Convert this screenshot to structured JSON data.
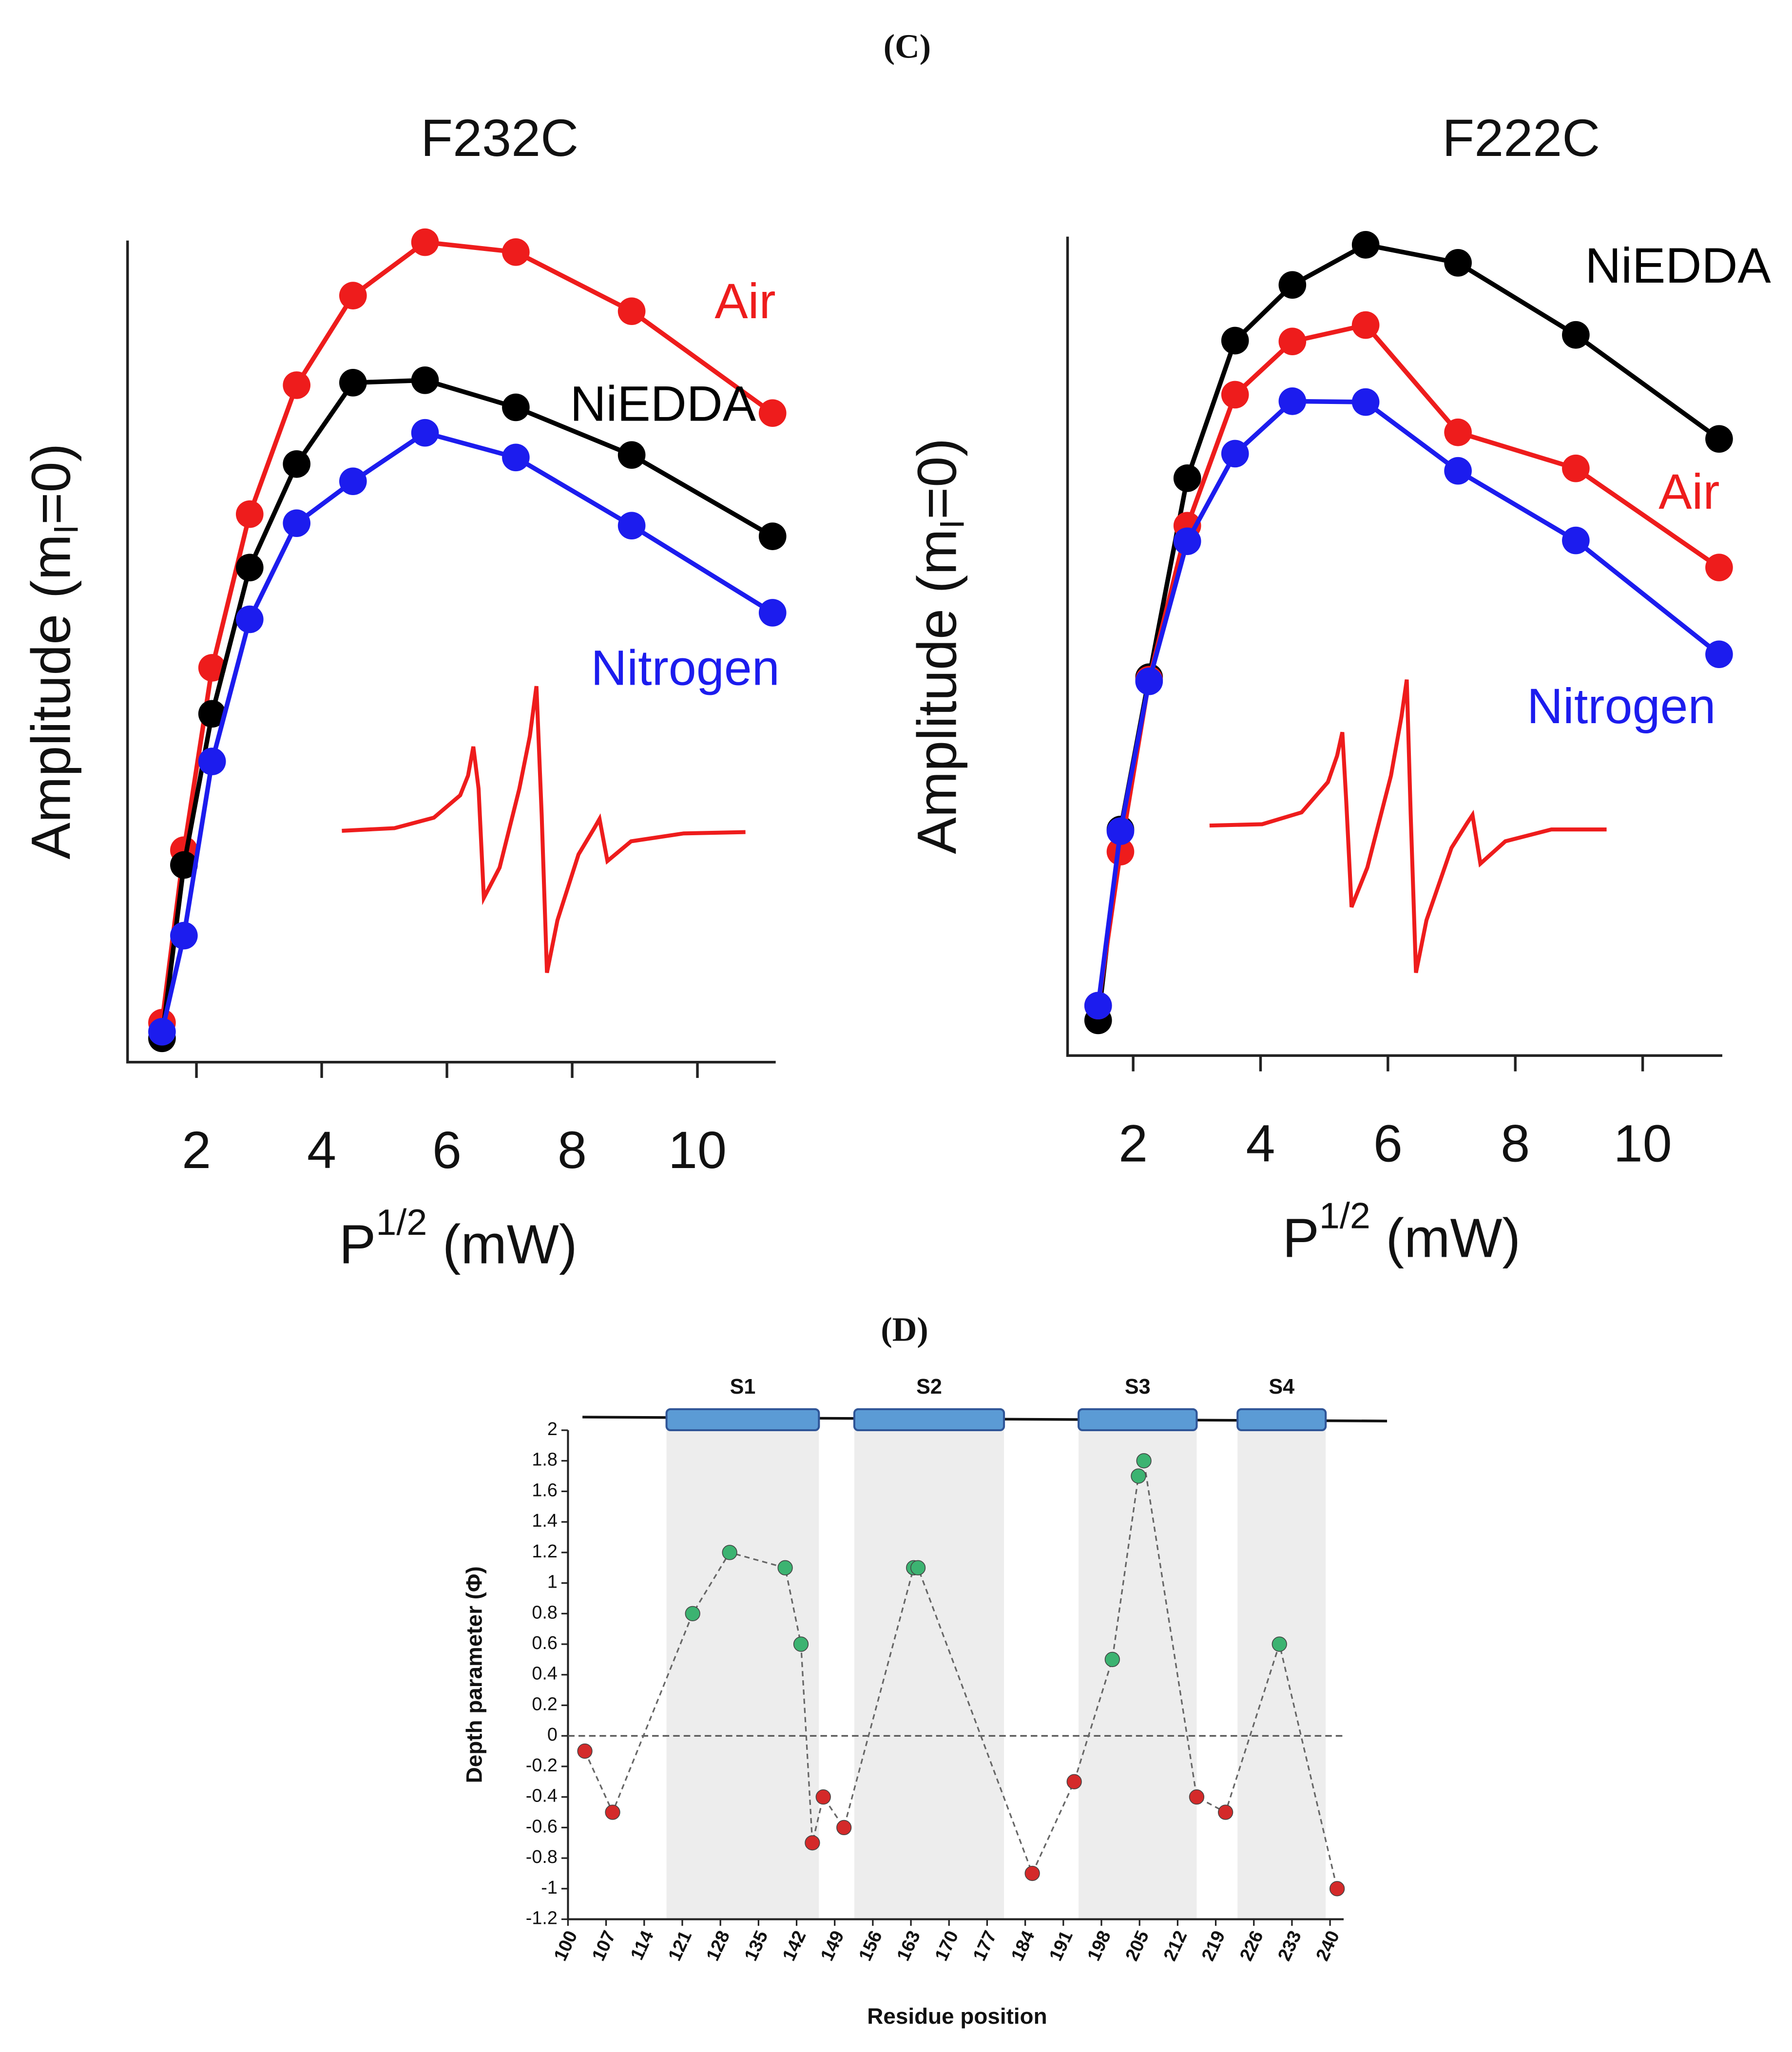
{
  "panels": [
    "(C)",
    "(D)"
  ],
  "chart_data": [
    {
      "type": "line",
      "title": "F232C",
      "xlabel": [
        "P",
        "1/2",
        " (mW)"
      ],
      "ylabel": [
        "Amplitude (m",
        "I",
        "=0)"
      ],
      "x": [
        1.45,
        1.8,
        2.25,
        2.85,
        3.6,
        4.5,
        5.65,
        7.1,
        8.95,
        11.2
      ],
      "xlim": [
        0.9,
        11.25
      ],
      "xticks": [
        2,
        4,
        6,
        8,
        10
      ],
      "ylim": [
        0,
        100
      ],
      "series": [
        {
          "name": "Air",
          "color": "#ee1c1c",
          "values": [
            4.8,
            25.8,
            48,
            66.7,
            82.4,
            93.3,
            99.8,
            98.6,
            91.4,
            79
          ]
        },
        {
          "name": "NiEDDA",
          "color": "#000000",
          "values": [
            2.9,
            24,
            42.4,
            60.2,
            72.8,
            82.7,
            83,
            79.7,
            73.9,
            64
          ]
        },
        {
          "name": "Nitrogen",
          "color": "#1c1cee",
          "values": [
            3.7,
            15.4,
            36.6,
            53.9,
            65.6,
            70.7,
            76.6,
            73.6,
            65.3,
            54.7
          ]
        }
      ]
    },
    {
      "type": "line",
      "title": "F222C",
      "xlabel": [
        "P",
        "1/2",
        " (mW)"
      ],
      "ylabel": [
        "Amplitude (m",
        "I",
        "=0)"
      ],
      "x": [
        1.45,
        1.8,
        2.25,
        2.85,
        3.6,
        4.5,
        5.65,
        7.1,
        8.95,
        11.2
      ],
      "xlim": [
        0.97,
        11.25
      ],
      "xticks": [
        2,
        4,
        6,
        8,
        10
      ],
      "ylim": [
        0,
        100
      ],
      "series": [
        {
          "name": "NiEDDA",
          "color": "#000000",
          "values": [
            4.3,
            27.6,
            46.2,
            70.5,
            87.3,
            94.1,
            99,
            96.8,
            88,
            75.3
          ]
        },
        {
          "name": "Air",
          "color": "#ee1c1c",
          "values": [
            6.1,
            24.9,
            45.9,
            64.7,
            80.7,
            87.2,
            89.2,
            76.1,
            71.7,
            59.6
          ]
        },
        {
          "name": "Nitrogen",
          "color": "#1c1cee",
          "values": [
            6.1,
            27.4,
            45.7,
            62.8,
            73.5,
            79.9,
            79.8,
            71.4,
            62.9,
            49
          ]
        }
      ]
    },
    {
      "type": "scatter",
      "xlabel": "Residue position",
      "ylabel": "Depth parameter (Φ)",
      "x": [
        103.1,
        108.2,
        122.9,
        129.7,
        139.9,
        142.8,
        144.9,
        146.9,
        150.7,
        163.5,
        164.3,
        185.3,
        193,
        200,
        204.8,
        205.8,
        215.5,
        220.8,
        230.7,
        241.3
      ],
      "values": [
        -0.1,
        -0.5,
        0.8,
        1.2,
        1.1,
        0.6,
        -0.7,
        -0.4,
        -0.6,
        1.1,
        1.1,
        -0.9,
        -0.3,
        0.5,
        1.7,
        1.8,
        -0.4,
        -0.5,
        0.6,
        -1
      ],
      "colors": [
        "#d42a2a",
        "#d42a2a",
        "#3cb371",
        "#3cb371",
        "#3cb371",
        "#3cb371",
        "#d42a2a",
        "#d42a2a",
        "#d42a2a",
        "#3cb371",
        "#3cb371",
        "#d42a2a",
        "#d42a2a",
        "#3cb371",
        "#3cb371",
        "#3cb371",
        "#d42a2a",
        "#d42a2a",
        "#3cb371",
        "#d42a2a"
      ],
      "xlim": [
        100,
        242.5
      ],
      "xticks": [
        100,
        107,
        114,
        121,
        128,
        135,
        142,
        149,
        156,
        163,
        170,
        177,
        184,
        191,
        198,
        205,
        212,
        219,
        226,
        233,
        240
      ],
      "ylim": [
        -1.2,
        2
      ],
      "yticks": [
        -1.2,
        -1,
        -0.8,
        -0.6,
        -0.4,
        -0.2,
        0,
        0.2,
        0.4,
        0.6,
        0.8,
        1,
        1.2,
        1.4,
        1.6,
        1.8,
        2
      ],
      "reference_line": 0,
      "regions": [
        {
          "label": "S1",
          "start": 118.1,
          "end": 146.1
        },
        {
          "label": "S2",
          "start": 152.6,
          "end": 180.1
        },
        {
          "label": "S3",
          "start": 193.8,
          "end": 215.5
        },
        {
          "label": "S4",
          "start": 223,
          "end": 239.2
        }
      ]
    }
  ]
}
